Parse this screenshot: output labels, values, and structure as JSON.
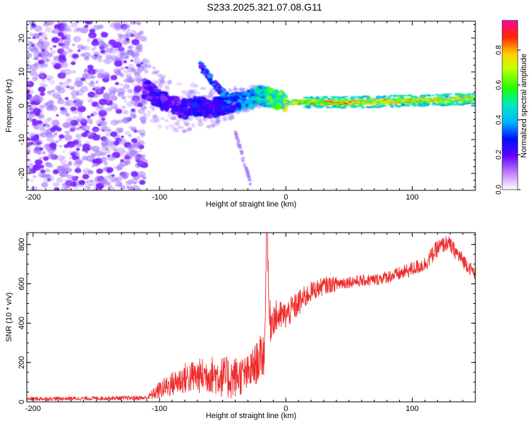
{
  "title": "S233.2025.321.07.08.G11",
  "colors": {
    "snr_line": "#ee2c2c",
    "axis": "#000000",
    "scatter_noise": "#a070ff"
  },
  "chart_data": [
    {
      "type": "heatmap",
      "name": "spectrogram",
      "xlabel": "Height of straight line (km)",
      "ylabel": "Frequency (Hz)",
      "xlim": [
        -205,
        150
      ],
      "ylim": [
        -25,
        25
      ],
      "xticks": [
        "-200",
        "-100",
        "0",
        "100"
      ],
      "xtick_values": [
        -200,
        -100,
        0,
        100
      ],
      "yticks": [
        "20",
        "10",
        "0",
        "-10",
        "-20"
      ],
      "ytick_values": [
        20,
        10,
        0,
        -10,
        -20
      ],
      "colorbar": {
        "label": "Normalized spectral amplitude",
        "ticks": [
          "0.0",
          "0.2",
          "0.4",
          "0.6",
          "0.8"
        ],
        "tick_values": [
          0,
          0.2,
          0.4,
          0.6,
          0.8
        ],
        "range": [
          0,
          0.97
        ]
      },
      "main_signal_ridge": {
        "x": [
          -110,
          -100,
          -90,
          -80,
          -70,
          -60,
          -50,
          -40,
          -30,
          -20,
          -10,
          0,
          15,
          50,
          100,
          150
        ],
        "freq": [
          5,
          2,
          0,
          -1,
          0,
          -1,
          0,
          1,
          2,
          3,
          2,
          1,
          1,
          1,
          1.5,
          2
        ],
        "amplitude": [
          0.25,
          0.3,
          0.25,
          0.3,
          0.35,
          0.3,
          0.35,
          0.4,
          0.5,
          0.6,
          0.7,
          0.8,
          0.95,
          0.95,
          0.85,
          0.85
        ]
      },
      "secondary_branch": {
        "x": [
          -68,
          -55,
          -45
        ],
        "freq": [
          12,
          6,
          2
        ]
      },
      "lower_branch": {
        "x": [
          -40,
          -32,
          -28
        ],
        "freq": [
          -8,
          -18,
          -23
        ]
      }
    },
    {
      "type": "line",
      "name": "snr",
      "xlabel": "Height of straight line (km)",
      "ylabel": "SNR (10 * v/v)",
      "xlim": [
        -205,
        150
      ],
      "ylim": [
        0,
        860
      ],
      "xticks": [
        "-200",
        "-100",
        "0",
        "100"
      ],
      "xtick_values": [
        -200,
        -100,
        0,
        100
      ],
      "yticks": [
        "0",
        "200",
        "400",
        "600",
        "800"
      ],
      "ytick_values": [
        0,
        200,
        400,
        600,
        800
      ],
      "envelope": {
        "x": [
          -205,
          -150,
          -110,
          -100,
          -80,
          -60,
          -45,
          -30,
          -17,
          -15,
          -13,
          -10,
          0,
          10,
          20,
          30,
          50,
          70,
          90,
          110,
          120,
          128,
          140,
          150
        ],
        "y": [
          15,
          18,
          20,
          60,
          120,
          140,
          120,
          140,
          250,
          860,
          400,
          430,
          440,
          500,
          560,
          590,
          610,
          620,
          650,
          700,
          780,
          810,
          720,
          650
        ],
        "ripple": [
          10,
          10,
          12,
          45,
          80,
          95,
          110,
          95,
          120,
          60,
          120,
          90,
          70,
          70,
          50,
          45,
          30,
          30,
          35,
          40,
          45,
          40,
          40,
          30
        ]
      },
      "series": [
        {
          "name": "SNR",
          "color": "#ee2c2c"
        }
      ]
    }
  ]
}
